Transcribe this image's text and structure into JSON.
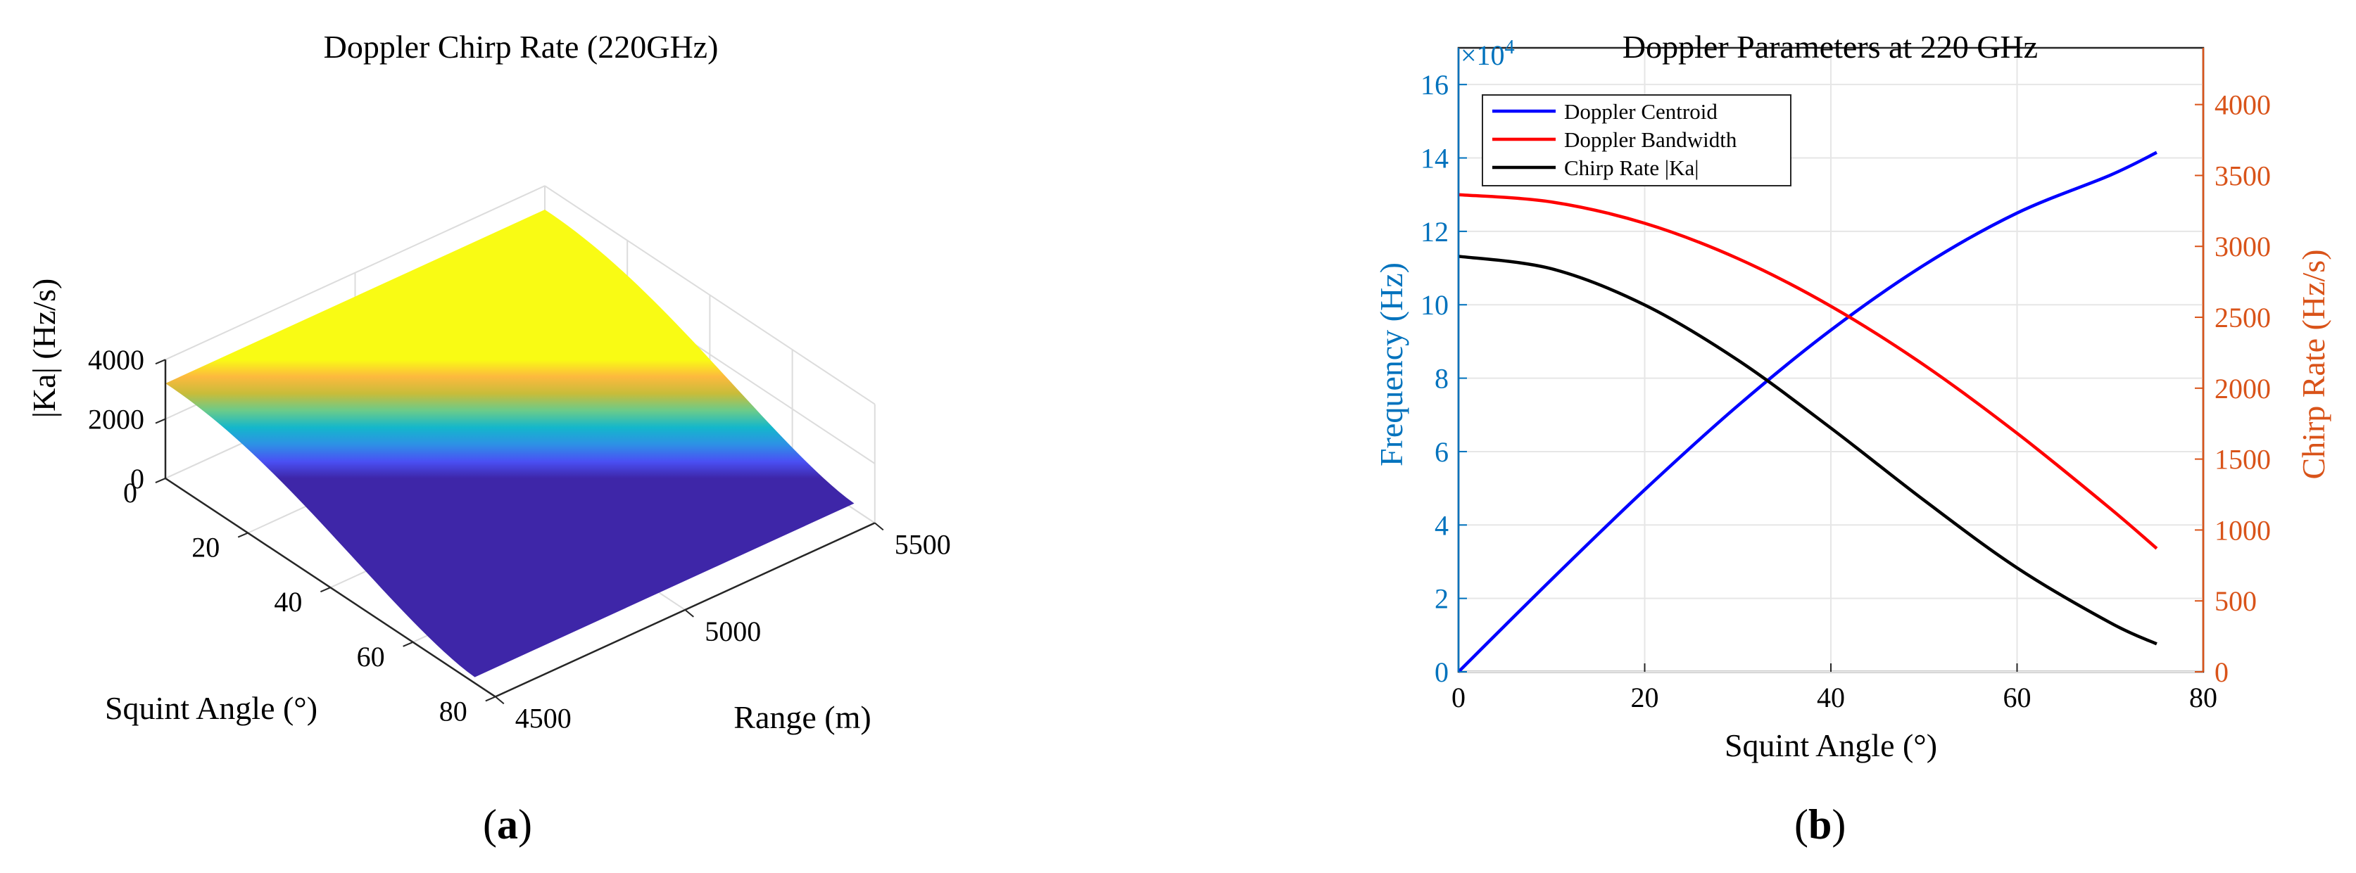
{
  "panels": {
    "a": {
      "label_open": "(",
      "label_letter": "a",
      "label_close": ")"
    },
    "b": {
      "label_open": "(",
      "label_letter": "b",
      "label_close": ")"
    }
  },
  "chart_data": [
    {
      "type": "surface",
      "title": "Doppler Chirp Rate (220GHz)",
      "xlabel": "Squint Angle (°)",
      "ylabel": "Range (m)",
      "zlabel": "|Ka| (Hz/s)",
      "x_ticks": [
        "0",
        "20",
        "40",
        "60",
        "80"
      ],
      "y_ticks": [
        "4500",
        "5000",
        "5500"
      ],
      "z_ticks": [
        "0",
        "2000",
        "4000"
      ],
      "xlim": [
        0,
        80
      ],
      "ylim": [
        4500,
        5500
      ],
      "zlim": [
        0,
        4000
      ],
      "squint_angle_range": [
        0,
        75
      ],
      "range_span": [
        4500,
        5500
      ],
      "ka_at_zero_squint": 3200,
      "ka_at_max_squint": 200,
      "colormap": "parula",
      "colormap_stops": [
        "#3E26A8",
        "#4A50F4",
        "#2D91E5",
        "#14B7CB",
        "#6BCB8A",
        "#C8BC3A",
        "#FDB93E",
        "#F9FB14"
      ]
    },
    {
      "type": "line",
      "title": "Doppler Parameters at 220 GHz",
      "xlabel": "Squint Angle (°)",
      "ylabel_left": "Frequency (Hz)",
      "ylabel_right": "Chirp Rate (Hz/s)",
      "left_axis_multiplier": "×10",
      "left_axis_exponent": "4",
      "xlim": [
        0,
        80
      ],
      "ylim_left": [
        0,
        170000
      ],
      "ylim_right": [
        0,
        4400
      ],
      "x_ticks": [
        "0",
        "20",
        "40",
        "60",
        "80"
      ],
      "y_ticks_left": [
        "0",
        "2",
        "4",
        "6",
        "8",
        "10",
        "12",
        "14",
        "16"
      ],
      "y_ticks_right": [
        "0",
        "500",
        "1000",
        "1500",
        "2000",
        "2500",
        "3000",
        "3500",
        "4000"
      ],
      "left_axis_color": "#0072BD",
      "right_axis_color": "#D95319",
      "series": [
        {
          "name": "Doppler Centroid",
          "axis": "left",
          "color": "#0000FF",
          "x": [
            0,
            10,
            20,
            30,
            40,
            50,
            60,
            70,
            75
          ],
          "y": [
            0,
            25180,
            49600,
            72500,
            93100,
            110800,
            125000,
            135300,
            141500
          ]
        },
        {
          "name": "Doppler Bandwidth",
          "axis": "left",
          "color": "#FF0000",
          "x": [
            0,
            10,
            20,
            30,
            40,
            50,
            60,
            70,
            75
          ],
          "y": [
            130000,
            128000,
            122200,
            112600,
            99600,
            83600,
            65000,
            44500,
            33600
          ]
        },
        {
          "name": "Chirp Rate |Ka|",
          "axis": "right",
          "color": "#000000",
          "x": [
            0,
            10,
            20,
            30,
            40,
            50,
            60,
            70,
            75
          ],
          "y": [
            2930,
            2842,
            2587,
            2198,
            1719,
            1210,
            733,
            346,
            197
          ]
        }
      ],
      "legend_position": "top-left"
    }
  ]
}
